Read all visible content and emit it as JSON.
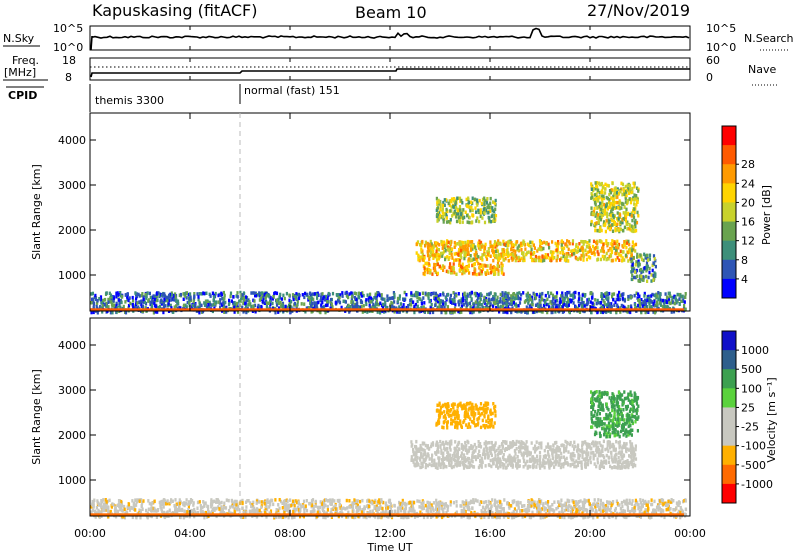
{
  "header": {
    "station": "Kapuskasing (fitACF)",
    "beam": "Beam 10",
    "date": "27/Nov/2019"
  },
  "top_panels": {
    "nsky_label": "N.Sky",
    "nsky_ticks": [
      "10^5",
      "10^0"
    ],
    "nsearch_label": "N.Search",
    "nsearch_ticks": [
      "10^5",
      "10^0"
    ],
    "freq_label_1": "Freq.",
    "freq_label_2": "[MHz]",
    "freq_ticks": [
      "18",
      "8"
    ],
    "nave_label": "Nave",
    "nave_ticks": [
      "60",
      "0"
    ],
    "cpid_label": "CPID",
    "cpid_segments": [
      {
        "text": "themis 3300",
        "start_h": 0
      },
      {
        "text": "normal (fast) 151",
        "start_h": 6
      }
    ]
  },
  "x_axis": {
    "label": "Time UT",
    "ticks": [
      "00:00",
      "04:00",
      "08:00",
      "12:00",
      "16:00",
      "20:00",
      "00:00"
    ],
    "tick_hours": [
      0,
      4,
      8,
      12,
      16,
      20,
      24
    ]
  },
  "colors": {
    "power": [
      "#0000ff",
      "#2e55b5",
      "#3d8f7a",
      "#69a34f",
      "#c8d22c",
      "#ffd400",
      "#ff9a00",
      "#ff5a00",
      "#ff0000"
    ],
    "velocity": [
      "#ff0000",
      "#ff6a00",
      "#ffb000",
      "#c8c8c0",
      "#c8c8c0",
      "#5ad23c",
      "#3ca050",
      "#2e5f8c",
      "#1010c8"
    ]
  },
  "chart_data": [
    {
      "type": "heatmap",
      "name": "power",
      "ylabel": "Slant Range [km]",
      "xlabel": "Time UT",
      "ylim": [
        200,
        4600
      ],
      "yticks": [
        "1000",
        "2000",
        "3000",
        "4000"
      ],
      "ytick_values": [
        1000,
        2000,
        3000,
        4000
      ],
      "colorbar_label": "Power [dB]",
      "colorbar_ticks": [
        "4",
        "8",
        "12",
        "16",
        "20",
        "24",
        "28"
      ],
      "regions": [
        {
          "t0": 0,
          "t1": 23.8,
          "r0": 200,
          "r1": 650,
          "value": 8
        },
        {
          "t0": 13.0,
          "t1": 21.8,
          "r0": 1350,
          "r1": 1800,
          "value": 22
        },
        {
          "t0": 13.3,
          "t1": 16.5,
          "r0": 1050,
          "r1": 1300,
          "value": 24
        },
        {
          "t0": 13.8,
          "t1": 16.2,
          "r0": 2200,
          "r1": 2750,
          "value": 16
        },
        {
          "t0": 20.0,
          "t1": 21.9,
          "r0": 2000,
          "r1": 3100,
          "value": 18
        },
        {
          "t0": 21.6,
          "t1": 22.6,
          "r0": 900,
          "r1": 1500,
          "value": 10
        }
      ]
    },
    {
      "type": "heatmap",
      "name": "velocity",
      "ylabel": "Slant Range [km]",
      "xlabel": "Time UT",
      "ylim": [
        200,
        4600
      ],
      "yticks": [
        "1000",
        "2000",
        "3000",
        "4000"
      ],
      "ytick_values": [
        1000,
        2000,
        3000,
        4000
      ],
      "colorbar_label": "Velocity [m s⁻¹]",
      "colorbar_ticks": [
        "1000",
        "500",
        "100",
        "25",
        "-25",
        "-100",
        "-500",
        "-1000"
      ],
      "regions": [
        {
          "t0": 0,
          "t1": 23.8,
          "r0": 200,
          "r1": 600,
          "value": -80
        },
        {
          "t0": 12.8,
          "t1": 21.8,
          "r0": 1300,
          "r1": 1900,
          "value": 0
        },
        {
          "t0": 13.8,
          "t1": 16.2,
          "r0": 2200,
          "r1": 2750,
          "value": -300
        },
        {
          "t0": 20.0,
          "t1": 21.9,
          "r0": 2000,
          "r1": 3000,
          "value": 120
        }
      ]
    }
  ]
}
